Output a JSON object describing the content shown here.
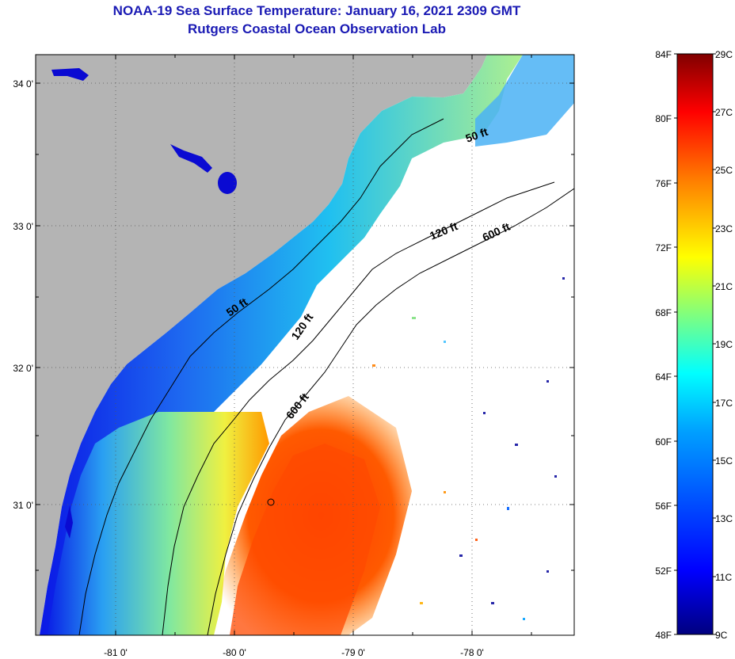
{
  "title": "NOAA-19 Sea Surface Temperature:  January 16, 2021 2309 GMT",
  "subtitle": "Rutgers Coastal Ocean Observation Lab",
  "map": {
    "lat_labels": [
      "34 0'",
      "33 0'",
      "32 0'",
      "31 0'"
    ],
    "lon_labels": [
      "-81 0'",
      "-80 0'",
      "-79 0'",
      "-78 0'"
    ],
    "contours": [
      "50 ft",
      "120 ft",
      "600 ft"
    ],
    "contour_labels": [
      "50 ft",
      "50 ft",
      "120 ft",
      "120 ft",
      "600 ft",
      "600 ft"
    ],
    "colors": {
      "land": "#b4b4b4",
      "cloud": "#ffffff",
      "coastline_water": "#0a0ad2"
    }
  },
  "colorbar": {
    "f_labels": [
      "84F",
      "80F",
      "76F",
      "72F",
      "68F",
      "64F",
      "60F",
      "56F",
      "52F",
      "48F"
    ],
    "c_labels": [
      "29C",
      "27C",
      "25C",
      "23C",
      "21C",
      "19C",
      "17C",
      "15C",
      "13C",
      "11C",
      "9C"
    ],
    "stops": [
      "#00007f",
      "#0000ff",
      "#007fff",
      "#00ffff",
      "#7fff7f",
      "#ffff00",
      "#ff7f00",
      "#ff0000",
      "#7f0000"
    ]
  }
}
